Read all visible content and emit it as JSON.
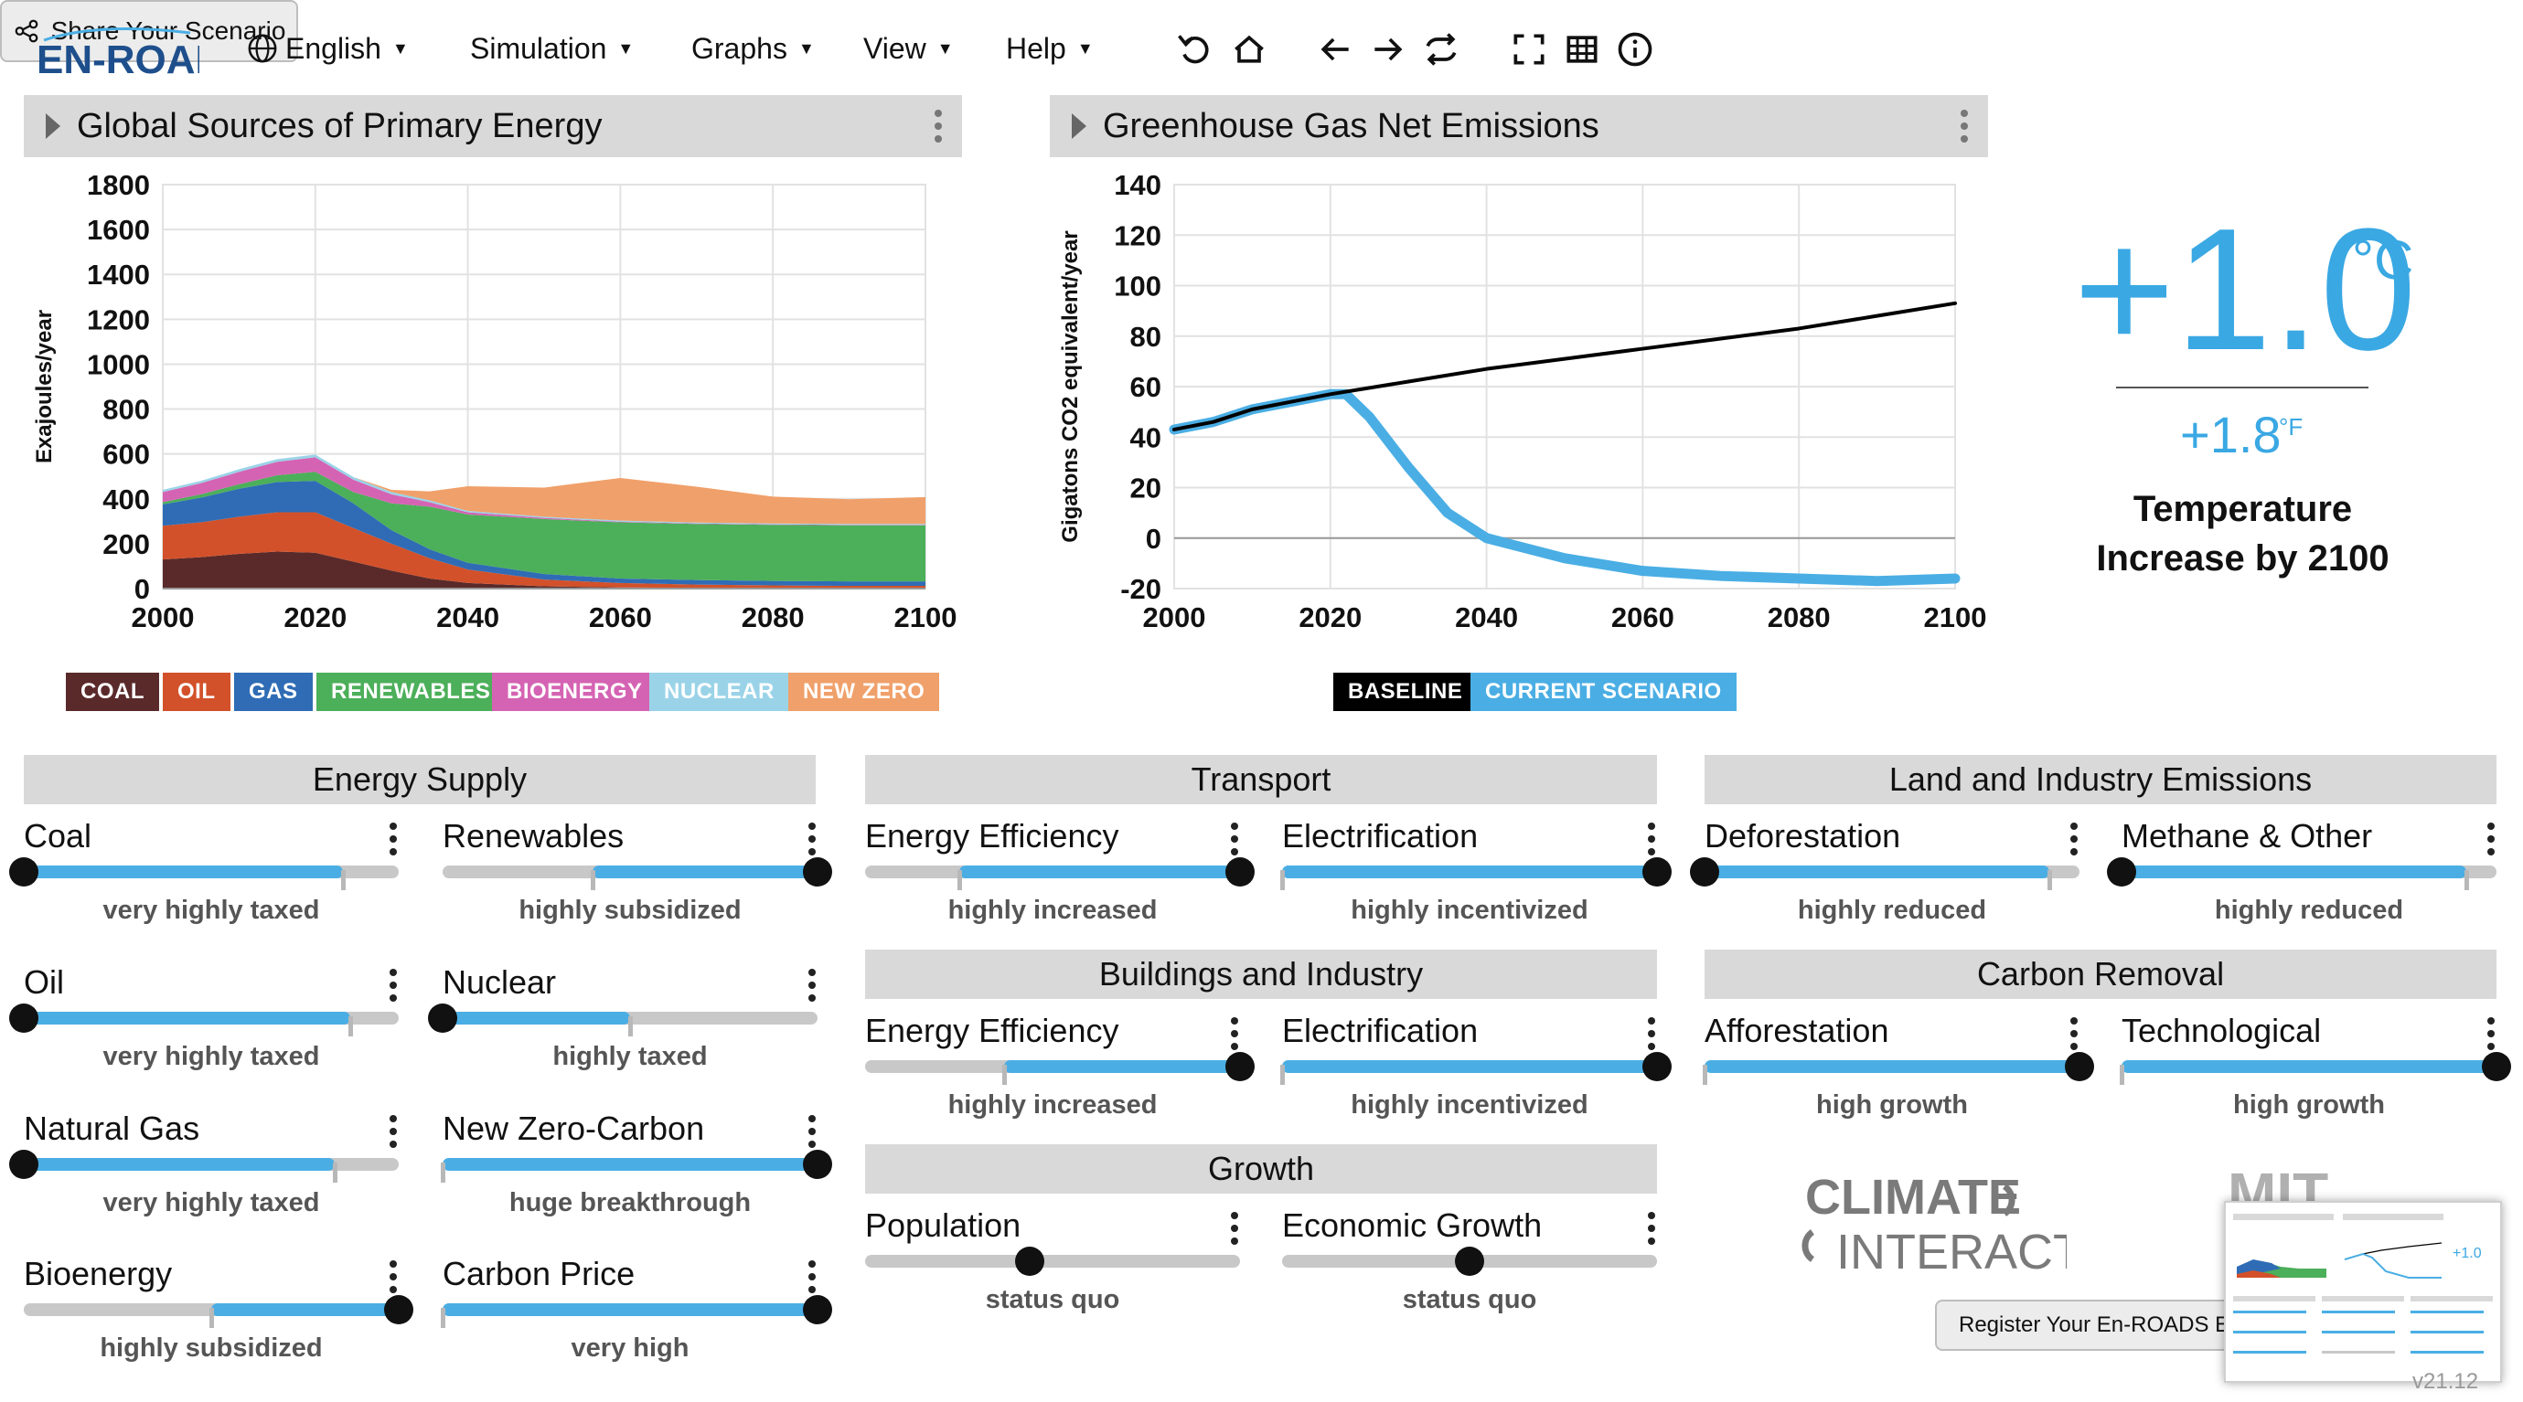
{
  "app": {
    "logo_text": "EN-ROADS",
    "version": "v21.12"
  },
  "menu": [
    {
      "id": "language",
      "label": "English",
      "icon": "globe-icon"
    },
    {
      "id": "simulation",
      "label": "Simulation"
    },
    {
      "id": "graphs",
      "label": "Graphs"
    },
    {
      "id": "view",
      "label": "View"
    },
    {
      "id": "help",
      "label": "Help"
    }
  ],
  "toolbar_icons": [
    "undo-icon",
    "home-icon",
    "back-icon",
    "forward-icon",
    "compare-icon",
    "fullscreen-icon",
    "table-icon",
    "info-icon"
  ],
  "share": {
    "label": "Share Your Scenario",
    "icon": "share-icon"
  },
  "graph_left": {
    "title": "Global Sources of Primary Energy",
    "chart_data": {
      "type": "area",
      "ylabel": "Exajoules/year",
      "xlim": [
        2000,
        2100
      ],
      "ylim": [
        0,
        1800
      ],
      "x_ticks": [
        2000,
        2020,
        2040,
        2060,
        2080,
        2100
      ],
      "y_ticks": [
        0,
        200,
        400,
        600,
        800,
        1000,
        1200,
        1400,
        1600,
        1800
      ],
      "x": [
        2000,
        2005,
        2010,
        2015,
        2020,
        2025,
        2030,
        2035,
        2040,
        2050,
        2060,
        2070,
        2080,
        2090,
        2100
      ],
      "series": [
        {
          "name": "COAL",
          "color": "#5a2a2a",
          "values": [
            130,
            140,
            155,
            165,
            160,
            120,
            80,
            45,
            25,
            10,
            5,
            3,
            2,
            2,
            2
          ]
        },
        {
          "name": "OIL",
          "color": "#d2512a",
          "values": [
            150,
            155,
            165,
            175,
            180,
            150,
            120,
            90,
            60,
            30,
            20,
            15,
            12,
            10,
            10
          ]
        },
        {
          "name": "GAS",
          "color": "#2f6cb5",
          "values": [
            95,
            110,
            125,
            135,
            140,
            110,
            60,
            40,
            30,
            25,
            20,
            20,
            20,
            20,
            20
          ]
        },
        {
          "name": "RENEWABLES",
          "color": "#4caf5a",
          "values": [
            10,
            15,
            20,
            30,
            40,
            50,
            120,
            190,
            215,
            245,
            250,
            250,
            250,
            250,
            250
          ]
        },
        {
          "name": "BIOENERGY",
          "color": "#d563b3",
          "values": [
            45,
            50,
            55,
            60,
            65,
            55,
            40,
            20,
            10,
            5,
            3,
            2,
            2,
            2,
            2
          ]
        },
        {
          "name": "NUCLEAR",
          "color": "#9ad3e8",
          "values": [
            10,
            10,
            12,
            12,
            12,
            12,
            10,
            8,
            6,
            5,
            5,
            4,
            4,
            4,
            4
          ]
        },
        {
          "name": "NEW ZERO",
          "color": "#f0a06a",
          "values": [
            0,
            0,
            0,
            0,
            0,
            0,
            10,
            40,
            110,
            130,
            190,
            160,
            120,
            110,
            120
          ]
        }
      ]
    }
  },
  "graph_right": {
    "title": "Greenhouse Gas Net Emissions",
    "chart_data": {
      "type": "line",
      "ylabel": "Gigatons CO2 equivalent/year",
      "xlim": [
        2000,
        2100
      ],
      "ylim": [
        -20,
        140
      ],
      "x_ticks": [
        2000,
        2020,
        2040,
        2060,
        2080,
        2100
      ],
      "y_ticks": [
        -20,
        0,
        20,
        40,
        60,
        80,
        100,
        120,
        140
      ],
      "series": [
        {
          "name": "BASELINE",
          "color": "#000000",
          "x": [
            2000,
            2005,
            2010,
            2015,
            2020,
            2030,
            2040,
            2050,
            2060,
            2070,
            2080,
            2090,
            2100
          ],
          "values": [
            43,
            46,
            51,
            54,
            57,
            62,
            67,
            71,
            75,
            79,
            83,
            88,
            93
          ]
        },
        {
          "name": "CURRENT SCENARIO",
          "color": "#4aaee4",
          "x": [
            2000,
            2005,
            2010,
            2015,
            2020,
            2022,
            2025,
            2030,
            2035,
            2040,
            2050,
            2060,
            2070,
            2080,
            2090,
            2100
          ],
          "values": [
            43,
            46,
            51,
            54,
            57,
            57,
            48,
            28,
            10,
            0,
            -8,
            -13,
            -15,
            -16,
            -17,
            -16
          ]
        }
      ]
    }
  },
  "temperature": {
    "celsius": "+1.0",
    "celsius_unit": "°C",
    "fahrenheit": "+1.8",
    "fahrenheit_unit": "°F",
    "label": "Temperature Increase by 2100"
  },
  "sections": {
    "energy_supply": "Energy Supply",
    "transport": "Transport",
    "buildings": "Buildings and Industry",
    "growth": "Growth",
    "land": "Land and Industry Emissions",
    "carbon_removal": "Carbon Removal"
  },
  "sliders": [
    {
      "id": "coal",
      "label": "Coal",
      "status": "very highly taxed",
      "value": 0.0,
      "fill_from": 0.0,
      "fill_to": 0.85,
      "tick": 0.85
    },
    {
      "id": "renewables",
      "label": "Renewables",
      "status": "highly subsidized",
      "value": 1.0,
      "fill_from": 0.4,
      "fill_to": 1.0,
      "tick": 0.4
    },
    {
      "id": "oil",
      "label": "Oil",
      "status": "very highly taxed",
      "value": 0.0,
      "fill_from": 0.0,
      "fill_to": 0.87,
      "tick": 0.87
    },
    {
      "id": "nuclear",
      "label": "Nuclear",
      "status": "highly taxed",
      "value": 0.0,
      "fill_from": 0.0,
      "fill_to": 0.5,
      "tick": 0.5
    },
    {
      "id": "natural_gas",
      "label": "Natural Gas",
      "status": "very highly taxed",
      "value": 0.0,
      "fill_from": 0.0,
      "fill_to": 0.83,
      "tick": 0.83
    },
    {
      "id": "new_zero_carbon",
      "label": "New Zero-Carbon",
      "status": "huge breakthrough",
      "value": 1.0,
      "fill_from": 0.0,
      "fill_to": 1.0,
      "tick": 0.0
    },
    {
      "id": "bioenergy",
      "label": "Bioenergy",
      "status": "highly subsidized",
      "value": 1.0,
      "fill_from": 0.5,
      "fill_to": 1.0,
      "tick": 0.5
    },
    {
      "id": "carbon_price",
      "label": "Carbon Price",
      "status": "very high",
      "value": 1.0,
      "fill_from": 0.0,
      "fill_to": 1.0,
      "tick": 0.0
    },
    {
      "id": "transport_efficiency",
      "label": "Energy Efficiency",
      "status": "highly increased",
      "value": 1.0,
      "fill_from": 0.25,
      "fill_to": 1.0,
      "tick": 0.25
    },
    {
      "id": "transport_electrification",
      "label": "Electrification",
      "status": "highly incentivized",
      "value": 1.0,
      "fill_from": 0.0,
      "fill_to": 1.0,
      "tick": 0.0
    },
    {
      "id": "buildings_efficiency",
      "label": "Energy Efficiency",
      "status": "highly increased",
      "value": 1.0,
      "fill_from": 0.37,
      "fill_to": 1.0,
      "tick": 0.37
    },
    {
      "id": "buildings_electrification",
      "label": "Electrification",
      "status": "highly incentivized",
      "value": 1.0,
      "fill_from": 0.0,
      "fill_to": 1.0,
      "tick": 0.0
    },
    {
      "id": "population",
      "label": "Population",
      "status": "status quo",
      "value": 0.44,
      "fill_from": 0.0,
      "fill_to": 0.0,
      "tick": -1
    },
    {
      "id": "economic_growth",
      "label": "Economic Growth",
      "status": "status quo",
      "value": 0.5,
      "fill_from": 0.0,
      "fill_to": 0.0,
      "tick": -1
    },
    {
      "id": "deforestation",
      "label": "Deforestation",
      "status": "highly reduced",
      "value": 0.0,
      "fill_from": 0.0,
      "fill_to": 0.92,
      "tick": 0.92
    },
    {
      "id": "methane_other",
      "label": "Methane & Other",
      "status": "highly reduced",
      "value": 0.0,
      "fill_from": 0.0,
      "fill_to": 0.92,
      "tick": 0.92
    },
    {
      "id": "afforestation",
      "label": "Afforestation",
      "status": "high growth",
      "value": 1.0,
      "fill_from": 0.0,
      "fill_to": 1.0,
      "tick": 0.0
    },
    {
      "id": "technological",
      "label": "Technological",
      "status": "high growth",
      "value": 1.0,
      "fill_from": 0.0,
      "fill_to": 1.0,
      "tick": 0.0
    }
  ],
  "footer": {
    "climate_interactive_top": "CLIMATE",
    "climate_interactive_bottom": "INTERACTIVE",
    "mit_text": "MIT",
    "register_label": "Register Your En-ROADS Eve"
  },
  "colors": {
    "accent": "#4aaee4",
    "baseline": "#000000",
    "header_bg": "#d9d9d9",
    "knob": "#111111"
  }
}
